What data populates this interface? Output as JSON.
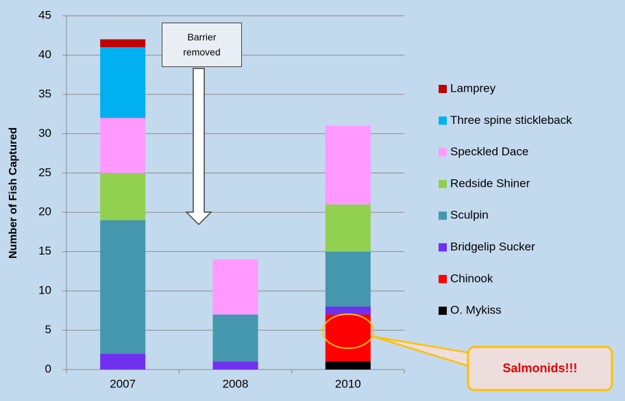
{
  "chart_data": {
    "type": "stacked_bar",
    "ylabel": "Number of Fish Captured",
    "categories": [
      "2007",
      "2008",
      "2010"
    ],
    "series": [
      {
        "name": "O. Mykiss",
        "color": "#000000",
        "values": [
          0,
          0,
          1
        ]
      },
      {
        "name": "Chinook",
        "color": "#ff0000",
        "values": [
          0,
          0,
          6
        ]
      },
      {
        "name": "Bridgelip Sucker",
        "color": "#7030f0",
        "values": [
          2,
          1,
          1
        ]
      },
      {
        "name": "Sculpin",
        "color": "#4597ad",
        "values": [
          17,
          6,
          7
        ]
      },
      {
        "name": "Redside Shiner",
        "color": "#92d050",
        "values": [
          6,
          0,
          6
        ]
      },
      {
        "name": "Speckled Dace",
        "color": "#ff99ff",
        "values": [
          7,
          7,
          10
        ]
      },
      {
        "name": "Three spine stickleback",
        "color": "#00b0f0",
        "values": [
          9,
          0,
          0
        ]
      },
      {
        "name": "Lamprey",
        "color": "#c00000",
        "values": [
          1,
          0,
          0
        ]
      }
    ],
    "ylim": [
      0,
      45
    ],
    "yticks": [
      0,
      5,
      10,
      15,
      20,
      25,
      30,
      35,
      40,
      45
    ],
    "grid": true,
    "legend": "right",
    "annotations": [
      "Barrier removed",
      "Salmonids!!!"
    ]
  }
}
